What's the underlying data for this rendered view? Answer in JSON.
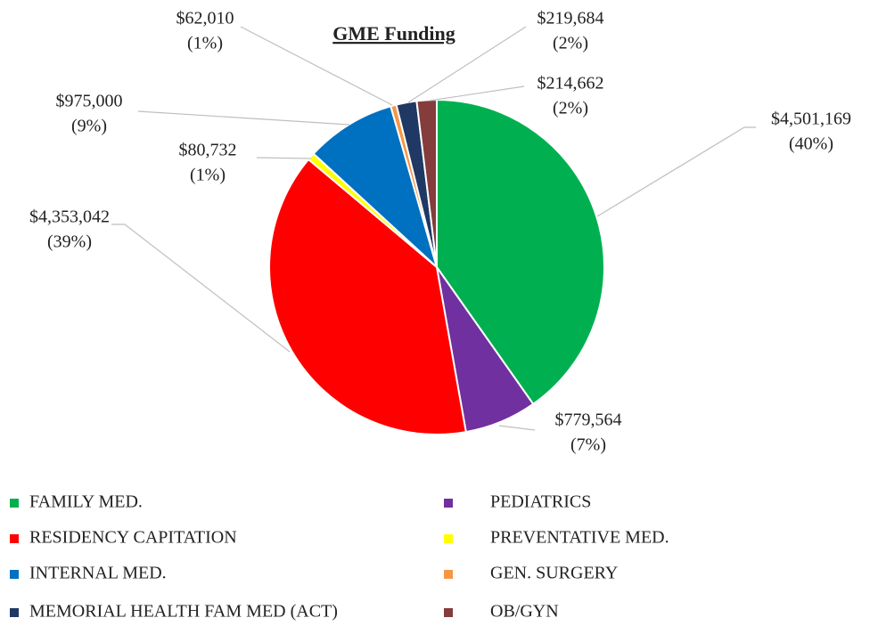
{
  "chart_data": {
    "type": "pie",
    "title": "GME Funding",
    "categories": [
      "FAMILY MED.",
      "PEDIATRICS",
      "RESIDENCY CAPITATION",
      "PREVENTATIVE MED.",
      "INTERNAL MED.",
      "GEN. SURGERY",
      "MEMORIAL HEALTH FAM MED (ACT)",
      "OB/GYN"
    ],
    "values": [
      4501169,
      779564,
      4353042,
      80732,
      975000,
      62010,
      219684,
      214662
    ],
    "value_labels": [
      "$4,501,169",
      "$779,564",
      "$4,353,042",
      "$80,732",
      "$975,000",
      "$62,010",
      "$219,684",
      "$214,662"
    ],
    "percent_labels": [
      "(40%)",
      "(7%)",
      "(39%)",
      "(1%)",
      "(9%)",
      "(1%)",
      "(2%)",
      "(2%)"
    ],
    "colors": [
      "#00b050",
      "#7030a0",
      "#ff0000",
      "#ffff00",
      "#0070c0",
      "#f79646",
      "#1f3864",
      "#843c3c"
    ],
    "legend": "bottom"
  }
}
